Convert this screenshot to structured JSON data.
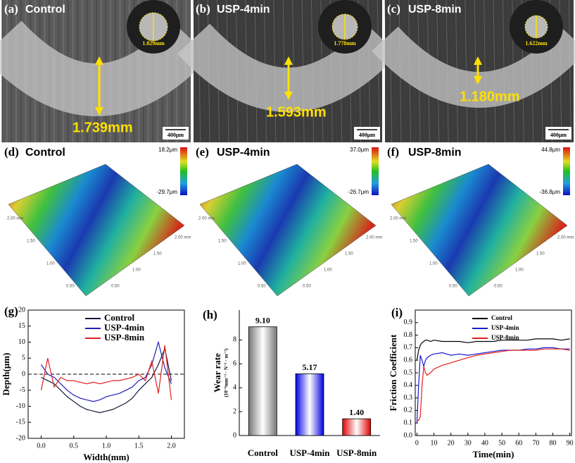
{
  "micrographs": [
    {
      "label": "(a)",
      "title": "Control",
      "inset_diameter": "1.829mm",
      "wear_width": "1.739mm",
      "scale_bar": "400μm"
    },
    {
      "label": "(b)",
      "title": "USP-4min",
      "inset_diameter": "1.778mm",
      "wear_width": "1.593mm",
      "scale_bar": "400μm"
    },
    {
      "label": "(c)",
      "title": "USP-8min",
      "inset_diameter": "1.622mm",
      "wear_width": "1.180mm",
      "scale_bar": "400μm"
    }
  ],
  "surface_maps": [
    {
      "label": "(d)",
      "title": "Control",
      "max": "18.2μm",
      "min": "-29.7μm",
      "axis_ticks_left": [
        "2.00 mm",
        "1.50",
        "1.00",
        "0.50"
      ],
      "axis_ticks_right": [
        "2.00 mm",
        "1.50",
        "1.00",
        "0.50"
      ]
    },
    {
      "label": "(e)",
      "title": "USP-4min",
      "max": "37.0μm",
      "min": "-26.7μm",
      "axis_ticks_left": [
        "2.00 mm",
        "1.50",
        "1.00",
        "0.50"
      ],
      "axis_ticks_right": [
        "2.00 mm",
        "1.50",
        "1.00",
        "0.50"
      ]
    },
    {
      "label": "(f)",
      "title": "USP-8min",
      "max": "44.8μm",
      "min": "-36.8μm",
      "axis_ticks_left": [
        "2.00 mm",
        "1.50",
        "1.00",
        "0.50"
      ],
      "axis_ticks_right": [
        "2.00 mm",
        "1.50",
        "1.00",
        "0.50"
      ]
    }
  ],
  "chart_data": [
    {
      "type": "line",
      "title": "(g)",
      "xlabel": "Width(mm)",
      "ylabel": "Depth(μm)",
      "x": [
        0,
        0.1,
        0.2,
        0.3,
        0.4,
        0.5,
        0.6,
        0.7,
        0.8,
        0.9,
        1.0,
        1.1,
        1.2,
        1.3,
        1.4,
        1.5,
        1.6,
        1.7,
        1.8,
        1.9,
        2.0
      ],
      "series": [
        {
          "name": "Control",
          "color": "#14143c",
          "values": [
            -1,
            -2,
            -3,
            -5,
            -7,
            -8.5,
            -10,
            -11,
            -11.5,
            -12,
            -11.5,
            -11,
            -10,
            -9,
            -7.5,
            -5,
            -3,
            -1,
            3,
            8,
            -2
          ]
        },
        {
          "name": "USP-4min",
          "color": "#2020b8",
          "values": [
            3,
            0,
            -1,
            -3,
            -5,
            -6.5,
            -7.5,
            -8,
            -8.5,
            -8,
            -7,
            -6.5,
            -6,
            -5,
            -4,
            -2,
            -1,
            3,
            10,
            2,
            -3
          ]
        },
        {
          "name": "USP-8min",
          "color": "#e0201c",
          "values": [
            -5,
            5,
            -4,
            -1,
            -2,
            -2,
            -2.5,
            -3,
            -2.5,
            -3,
            -2.5,
            -2,
            -2,
            -1.5,
            -1,
            0,
            -2,
            4,
            -6,
            9,
            -8
          ]
        }
      ],
      "xlim": [
        -0.2,
        2.2
      ],
      "xticks": [
        {
          "value": 0,
          "label": "0.0"
        },
        0.5,
        {
          "value": 1,
          "label": "1.0"
        },
        1.5,
        {
          "value": 2,
          "label": "2.0"
        }
      ],
      "ylim": [
        -20,
        20
      ],
      "yticks": [
        -20,
        -15,
        -10,
        -5,
        0,
        5,
        10,
        15,
        20
      ],
      "reference_line": 0,
      "legend": "upper center"
    },
    {
      "type": "bar",
      "title": "(h)",
      "ylabel": "Wear rate",
      "yunit": "(10⁻⁶mm⁻³ · N⁻¹ · m⁻¹)",
      "categories": [
        "Control",
        "USP-4min",
        "USP-8min"
      ],
      "values": [
        9.1,
        5.17,
        1.4
      ],
      "value_labels": [
        "9.10",
        "5.17",
        "1.40"
      ],
      "colors": [
        "#777777",
        "#0000e0",
        "#e00000"
      ],
      "ylim": [
        0,
        10.5
      ],
      "yticks": [
        0,
        2,
        4,
        6,
        8
      ]
    },
    {
      "type": "line",
      "title": "(i)",
      "xlabel": "Time(min)",
      "ylabel": "Friction Coefficient",
      "x": [
        0,
        1,
        2,
        3,
        4,
        5,
        6,
        8,
        10,
        15,
        20,
        25,
        30,
        35,
        40,
        45,
        50,
        55,
        60,
        65,
        70,
        75,
        80,
        85,
        90
      ],
      "series": [
        {
          "name": "Control",
          "color": "#000000",
          "values": [
            0.6,
            0.68,
            0.72,
            0.74,
            0.75,
            0.76,
            0.76,
            0.75,
            0.76,
            0.75,
            0.75,
            0.75,
            0.74,
            0.75,
            0.75,
            0.75,
            0.76,
            0.76,
            0.76,
            0.76,
            0.77,
            0.77,
            0.77,
            0.76,
            0.77
          ]
        },
        {
          "name": "USP-4min",
          "color": "#1a1ad0",
          "values": [
            0.1,
            0.4,
            0.64,
            0.6,
            0.55,
            0.6,
            0.62,
            0.64,
            0.65,
            0.66,
            0.64,
            0.65,
            0.64,
            0.65,
            0.66,
            0.67,
            0.68,
            0.68,
            0.68,
            0.69,
            0.69,
            0.7,
            0.7,
            0.69,
            0.69
          ]
        },
        {
          "name": "USP-8min",
          "color": "#e0201c",
          "values": [
            0.12,
            0.12,
            0.15,
            0.4,
            0.55,
            0.5,
            0.48,
            0.5,
            0.53,
            0.56,
            0.58,
            0.6,
            0.62,
            0.64,
            0.65,
            0.66,
            0.67,
            0.68,
            0.68,
            0.68,
            0.68,
            0.69,
            0.69,
            0.69,
            0.68
          ]
        }
      ],
      "xlim": [
        -1,
        91
      ],
      "xticks": [
        0,
        10,
        20,
        30,
        40,
        50,
        60,
        70,
        80,
        90
      ],
      "ylim": [
        0,
        1.0
      ],
      "yticks": [
        {
          "value": 0,
          "label": "0.0"
        },
        0.1,
        0.2,
        0.3,
        0.4,
        0.5,
        0.6,
        0.7,
        0.8,
        0.9
      ],
      "legend": "upper center"
    }
  ]
}
